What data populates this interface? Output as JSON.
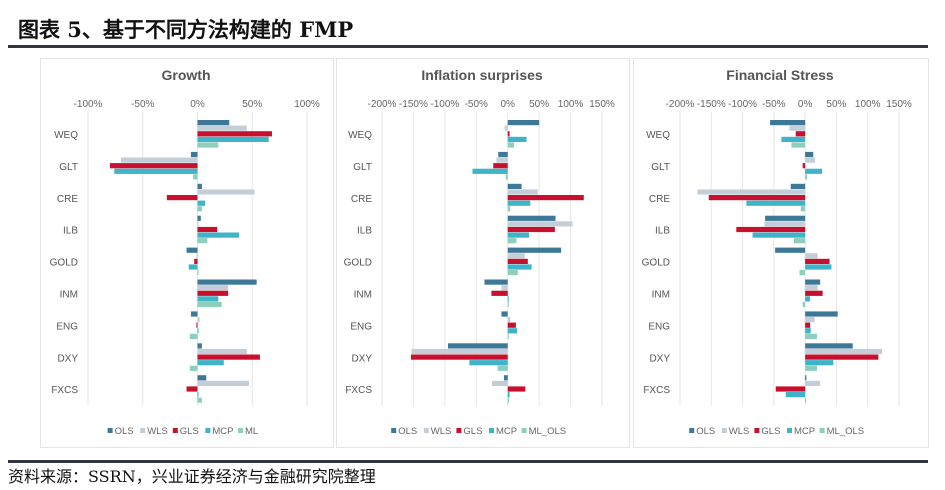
{
  "title": "图表 5、基于不同方法构建的 FMP",
  "source": "资料来源：SSRN，兴业证券经济与金融研究院整理",
  "colors": {
    "OLS": "#3e7897",
    "WLS": "#c3ced8",
    "GLS": "#c8102e",
    "MCP": "#3fb3c9",
    "ML": "#8ccfbf"
  },
  "chart_data": [
    {
      "type": "bar",
      "orientation": "horizontal",
      "title": "Growth",
      "xlim": [
        -100,
        100
      ],
      "xticks": [
        "-100%",
        "-50%",
        "0%",
        "50%",
        "100%"
      ],
      "xtick_values": [
        -100,
        -50,
        0,
        50,
        100
      ],
      "categories": [
        "WEQ",
        "GLT",
        "CRE",
        "ILB",
        "GOLD",
        "INM",
        "ENG",
        "DXY",
        "FXCS"
      ],
      "grid": true,
      "legend": "bottom",
      "series": [
        {
          "name": "OLS",
          "values": [
            29,
            -6,
            4,
            3,
            -10,
            54,
            -6,
            4,
            8
          ]
        },
        {
          "name": "WLS",
          "values": [
            45,
            -70,
            52,
            0,
            -1,
            28,
            2,
            45,
            47
          ]
        },
        {
          "name": "GLS",
          "values": [
            68,
            -80,
            -28,
            18,
            -3,
            28,
            -1,
            57,
            -10
          ]
        },
        {
          "name": "MCP",
          "values": [
            65,
            -76,
            7,
            38,
            -8,
            19,
            0,
            24,
            0
          ]
        },
        {
          "name": "ML",
          "values": [
            19,
            -4,
            4,
            9,
            1,
            22,
            -7,
            -7,
            4
          ]
        }
      ]
    },
    {
      "type": "bar",
      "orientation": "horizontal",
      "title": "Inflation surprises",
      "xlim": [
        -200,
        150
      ],
      "xticks": [
        "-200%",
        "-150%",
        "-100%",
        "-50%",
        "0%",
        "50%",
        "100%",
        "150%"
      ],
      "xtick_values": [
        -200,
        -150,
        -100,
        -50,
        0,
        50,
        100,
        150
      ],
      "categories": [
        "WEQ",
        "GLT",
        "CRE",
        "ILB",
        "GOLD",
        "INM",
        "ENG",
        "DXY",
        "FXCS"
      ],
      "grid": true,
      "legend": "bottom",
      "series": [
        {
          "name": "OLS",
          "values": [
            50,
            -15,
            22,
            76,
            85,
            -37,
            -10,
            -95,
            -6
          ]
        },
        {
          "name": "WLS",
          "values": [
            -5,
            -18,
            48,
            103,
            27,
            -10,
            4,
            -153,
            -25
          ]
        },
        {
          "name": "GLS",
          "values": [
            3,
            -23,
            121,
            75,
            32,
            -26,
            13,
            -154,
            28
          ]
        },
        {
          "name": "MCP",
          "values": [
            30,
            -56,
            36,
            34,
            38,
            1,
            15,
            -61,
            3
          ]
        },
        {
          "name": "ML_OLS",
          "values": [
            10,
            -3,
            4,
            14,
            16,
            1,
            1,
            -16,
            2
          ]
        }
      ]
    },
    {
      "type": "bar",
      "orientation": "horizontal",
      "title": "Financial Stress",
      "xlim": [
        -200,
        150
      ],
      "xticks": [
        "-200%",
        "-150%",
        "-100%",
        "-50%",
        "0%",
        "50%",
        "100%",
        "150%"
      ],
      "xtick_values": [
        -200,
        -150,
        -100,
        -50,
        0,
        50,
        100,
        150
      ],
      "categories": [
        "WEQ",
        "GLT",
        "CRE",
        "ILB",
        "GOLD",
        "INM",
        "ENG",
        "DXY",
        "FXCS"
      ],
      "grid": true,
      "legend": "bottom",
      "series": [
        {
          "name": "OLS",
          "values": [
            -56,
            13,
            -23,
            -64,
            -48,
            24,
            52,
            76,
            2
          ]
        },
        {
          "name": "WLS",
          "values": [
            -25,
            16,
            -172,
            -65,
            20,
            20,
            15,
            123,
            24
          ]
        },
        {
          "name": "GLS",
          "values": [
            -15,
            -4,
            -154,
            -110,
            39,
            28,
            8,
            117,
            -47
          ]
        },
        {
          "name": "MCP",
          "values": [
            -38,
            27,
            -94,
            -84,
            42,
            8,
            9,
            45,
            -31
          ]
        },
        {
          "name": "ML_OLS",
          "values": [
            -22,
            3,
            -7,
            -18,
            -9,
            -4,
            19,
            19,
            0
          ]
        }
      ]
    }
  ]
}
